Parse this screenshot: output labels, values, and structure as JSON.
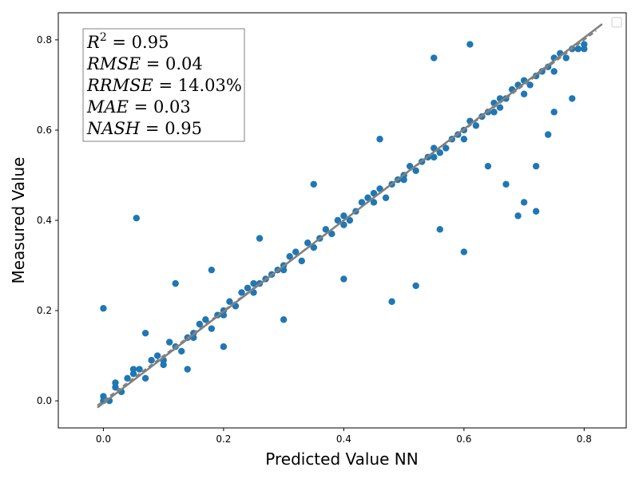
{
  "chart_data": {
    "type": "scatter",
    "title": "",
    "xlabel": "Predicted Value NN",
    "ylabel": "Measured Value",
    "xlim": [
      -0.075,
      0.87
    ],
    "ylim": [
      -0.06,
      0.86
    ],
    "xticks": [
      0.0,
      0.2,
      0.4,
      0.6,
      0.8
    ],
    "xtick_labels": [
      "0.0",
      "0.2",
      "0.4",
      "0.6",
      "0.8"
    ],
    "yticks": [
      0.0,
      0.2,
      0.4,
      0.6,
      0.8
    ],
    "ytick_labels": [
      "0.0",
      "0.2",
      "0.4",
      "0.6",
      "0.8"
    ],
    "grid": false,
    "legend": "top-right, empty",
    "colors": {
      "points": "#1f77b4",
      "fit_line": "#808080",
      "identity_line": "#808080"
    },
    "stats": [
      {
        "name": "R^2",
        "value": "0.95"
      },
      {
        "name": "RMSE",
        "value": "0.04"
      },
      {
        "name": "RRMSE",
        "value": "14.03%"
      },
      {
        "name": "MAE",
        "value": "0.03"
      },
      {
        "name": "NASH",
        "value": "0.95"
      }
    ],
    "series": [
      {
        "type": "scatter",
        "x": [
          0.0,
          0.01,
          0.02,
          0.03,
          0.05,
          0.07,
          0.08,
          0.1,
          0.12,
          0.13,
          0.15,
          0.16,
          0.18,
          0.2,
          0.21,
          0.22,
          0.24,
          0.26,
          0.28,
          0.3,
          0.31,
          0.33,
          0.34,
          0.36,
          0.38,
          0.39,
          0.4,
          0.42,
          0.43,
          0.45,
          0.46,
          0.48,
          0.5,
          0.51,
          0.53,
          0.55,
          0.56,
          0.58,
          0.6,
          0.61,
          0.62,
          0.64,
          0.65,
          0.67,
          0.69,
          0.7,
          0.72,
          0.73,
          0.75,
          0.76,
          0.78,
          0.8,
          0.02,
          0.04,
          0.06,
          0.09,
          0.11,
          0.14,
          0.17,
          0.19,
          0.23,
          0.25,
          0.27,
          0.29,
          0.32,
          0.35,
          0.37,
          0.41,
          0.44,
          0.47,
          0.49,
          0.52,
          0.54,
          0.57,
          0.59,
          0.63,
          0.66,
          0.68,
          0.71,
          0.74,
          0.77,
          0.79,
          0.0,
          0.05,
          0.1,
          0.15,
          0.2,
          0.25,
          0.3,
          0.35,
          0.4,
          0.45,
          0.5,
          0.55,
          0.6,
          0.65,
          0.7,
          0.75,
          0.8,
          0.055,
          0.0,
          0.07,
          0.12,
          0.18,
          0.26,
          0.35,
          0.46,
          0.55,
          0.61,
          0.66,
          0.7,
          0.72,
          0.74,
          0.78,
          0.52,
          0.48,
          0.4,
          0.3,
          0.2,
          0.14,
          0.72,
          0.64,
          0.56,
          0.6,
          0.67,
          0.69,
          0.75
        ],
        "y": [
          0.01,
          0.0,
          0.03,
          0.02,
          0.06,
          0.05,
          0.09,
          0.08,
          0.12,
          0.11,
          0.15,
          0.17,
          0.16,
          0.2,
          0.22,
          0.21,
          0.25,
          0.26,
          0.28,
          0.3,
          0.32,
          0.31,
          0.35,
          0.36,
          0.37,
          0.4,
          0.41,
          0.42,
          0.44,
          0.46,
          0.47,
          0.48,
          0.5,
          0.52,
          0.53,
          0.56,
          0.55,
          0.58,
          0.6,
          0.62,
          0.61,
          0.64,
          0.66,
          0.67,
          0.7,
          0.71,
          0.72,
          0.73,
          0.76,
          0.77,
          0.78,
          0.79,
          0.04,
          0.05,
          0.07,
          0.1,
          0.13,
          0.14,
          0.18,
          0.19,
          0.24,
          0.24,
          0.27,
          0.29,
          0.33,
          0.34,
          0.38,
          0.4,
          0.45,
          0.45,
          0.49,
          0.51,
          0.54,
          0.56,
          0.59,
          0.63,
          0.65,
          0.69,
          0.7,
          0.74,
          0.76,
          0.78,
          0.0,
          0.07,
          0.09,
          0.14,
          0.19,
          0.26,
          0.29,
          0.34,
          0.39,
          0.44,
          0.49,
          0.54,
          0.58,
          0.64,
          0.68,
          0.73,
          0.78,
          0.405,
          0.205,
          0.15,
          0.26,
          0.29,
          0.36,
          0.48,
          0.58,
          0.76,
          0.79,
          0.67,
          0.44,
          0.52,
          0.59,
          0.67,
          0.255,
          0.22,
          0.27,
          0.18,
          0.12,
          0.07,
          0.42,
          0.52,
          0.38,
          0.33,
          0.48,
          0.41,
          0.64
        ],
        "fit_line": {
          "x": [
            -0.01,
            0.83
          ],
          "y": [
            -0.015,
            0.835
          ]
        },
        "identity_line": {
          "x": [
            -0.01,
            0.82
          ],
          "y": [
            -0.01,
            0.82
          ]
        }
      }
    ]
  }
}
